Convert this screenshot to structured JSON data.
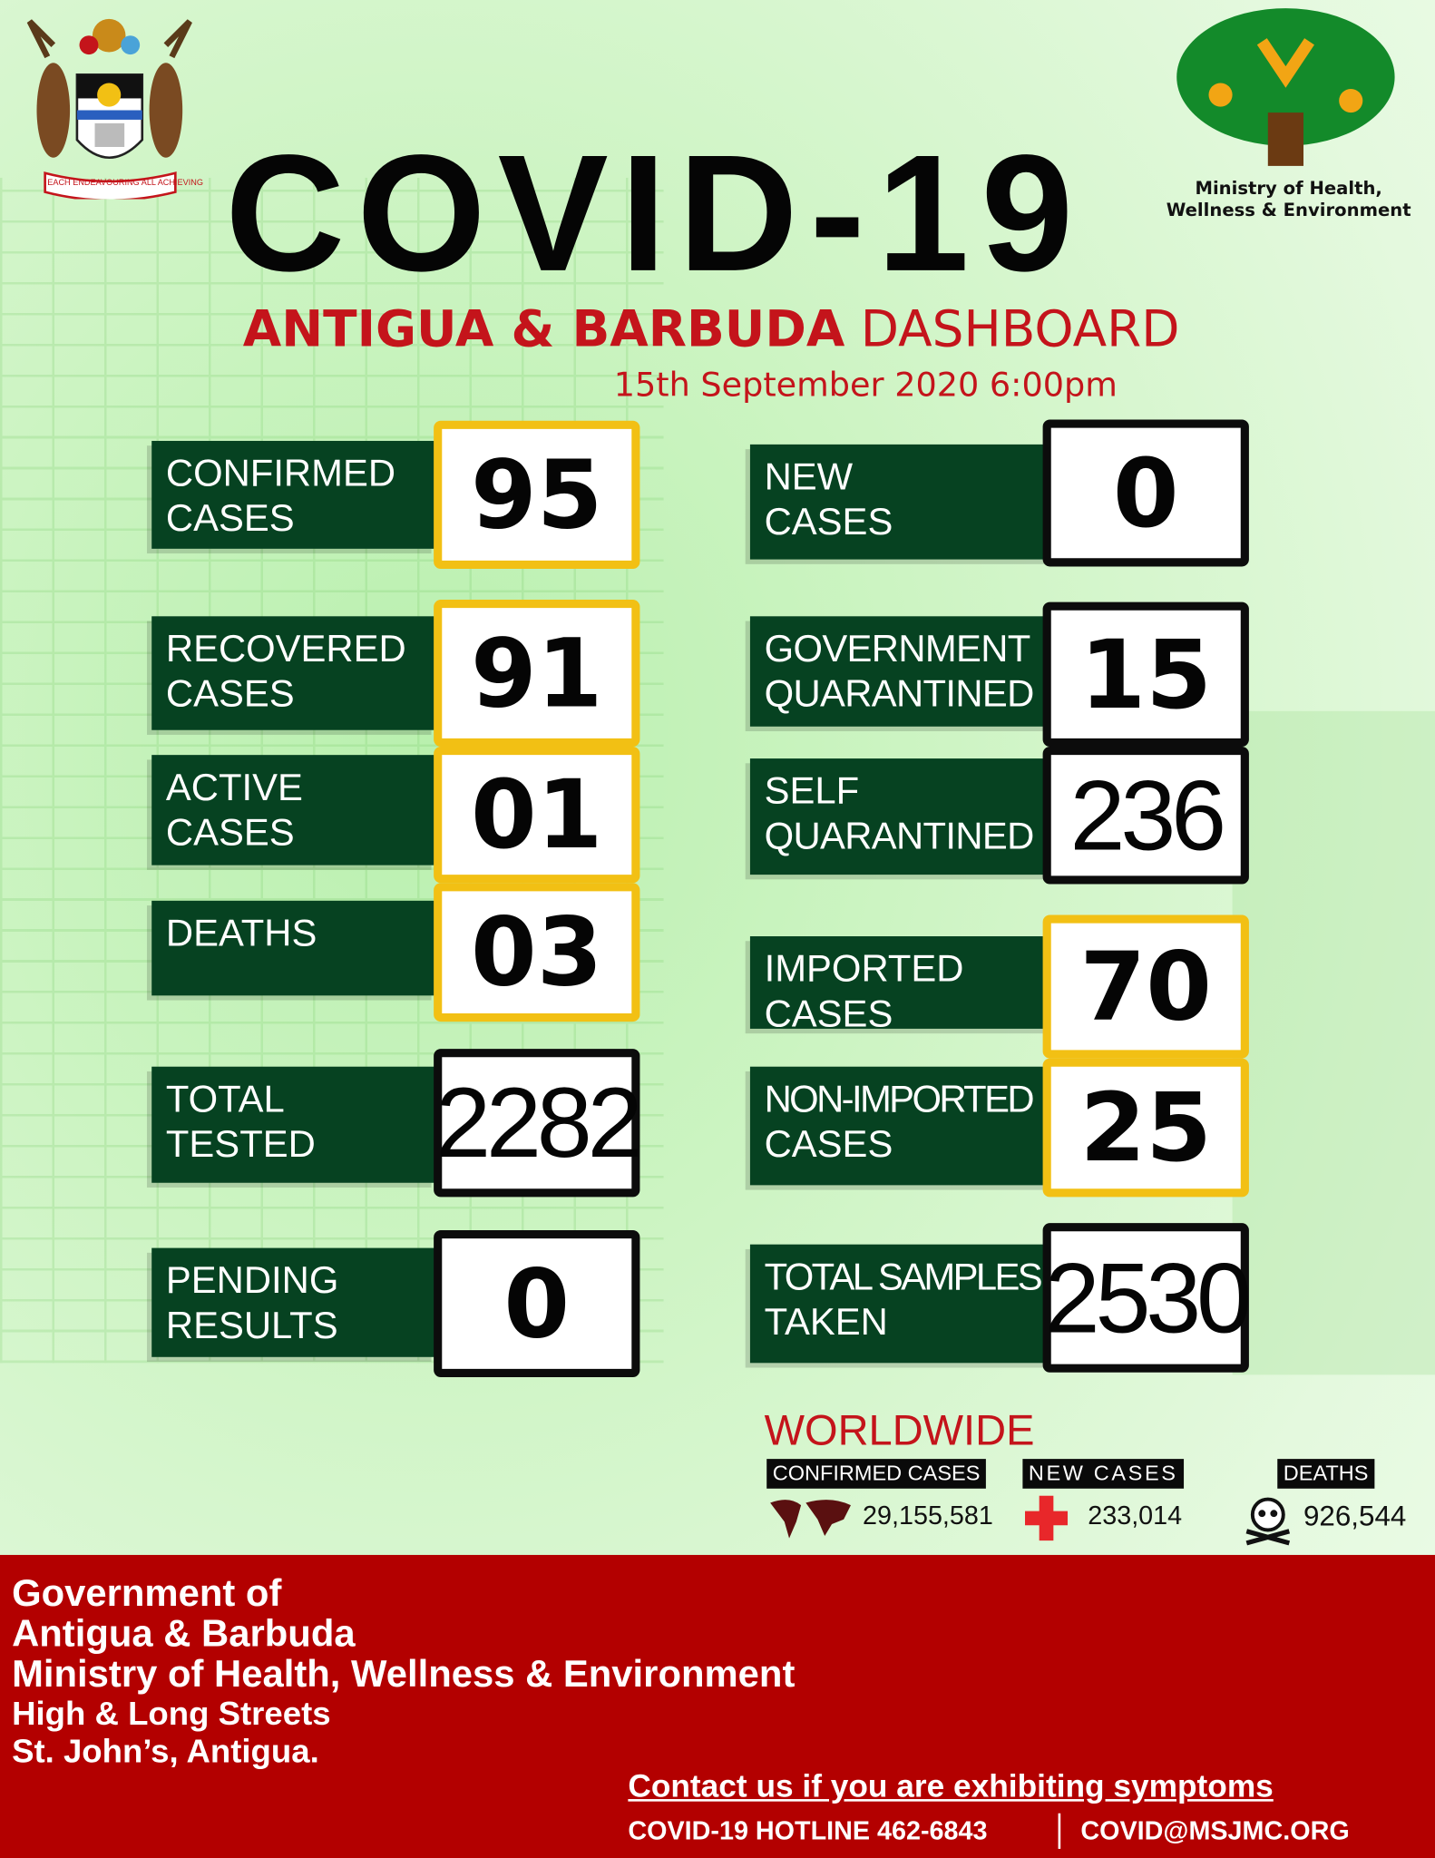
{
  "header": {
    "title": "COVID-19",
    "subtitle_bold": "ANTIGUA & BARBUDA",
    "subtitle_regular": "DASHBOARD",
    "date": "15th September 2020  6:00pm",
    "ministry_logo_text": "Ministry of Health, Wellness & Environment",
    "coat_of_arms_motto": "EACH ENDEAVOURING ALL ACHIEVING"
  },
  "colors": {
    "dark_green": "#064221",
    "red": "#c4141b",
    "yellow_border": "#f2c014",
    "footer_red": "#b30000"
  },
  "left_stats": [
    {
      "label": [
        "CONFIRMED",
        "CASES"
      ],
      "value": "95"
    },
    {
      "label": [
        "RECOVERED",
        "CASES"
      ],
      "value": "91"
    },
    {
      "label": [
        "ACTIVE",
        "CASES"
      ],
      "value": "01"
    },
    {
      "label": [
        "DEATHS"
      ],
      "value": "03"
    },
    {
      "label": [
        "TOTAL",
        "TESTED"
      ],
      "value": "2282"
    },
    {
      "label": [
        "PENDING",
        "RESULTS"
      ],
      "value": "0"
    }
  ],
  "right_stats": [
    {
      "label": [
        "NEW",
        "CASES"
      ],
      "value": "0"
    },
    {
      "label": [
        "GOVERNMENT",
        "QUARANTINED"
      ],
      "value": "15"
    },
    {
      "label": [
        "SELF",
        "QUARANTINED"
      ],
      "value": "236"
    },
    {
      "label": [
        "IMPORTED",
        "CASES"
      ],
      "value": "70"
    },
    {
      "label": [
        "NON-IMPORTED",
        "CASES"
      ],
      "value": "25"
    },
    {
      "label": [
        "TOTAL SAMPLES",
        "TAKEN"
      ],
      "value": "2530"
    }
  ],
  "worldwide": {
    "title": "WORLDWIDE",
    "confirmed_label": "CONFIRMED CASES",
    "confirmed": "29,155,581",
    "new_label": "NEW CASES",
    "new": "233,014",
    "deaths_label": "DEATHS",
    "deaths": "926,544"
  },
  "footer": {
    "lines": [
      "Government of",
      "Antigua & Barbuda",
      "Ministry of Health, Wellness & Environment",
      "High & Long Streets",
      "St. John’s, Antigua."
    ],
    "contact": "Contact us if you are exhibiting symptoms",
    "hotline": "COVID-19 HOTLINE 462-6843",
    "email": "COVID@MSJMC.ORG"
  }
}
